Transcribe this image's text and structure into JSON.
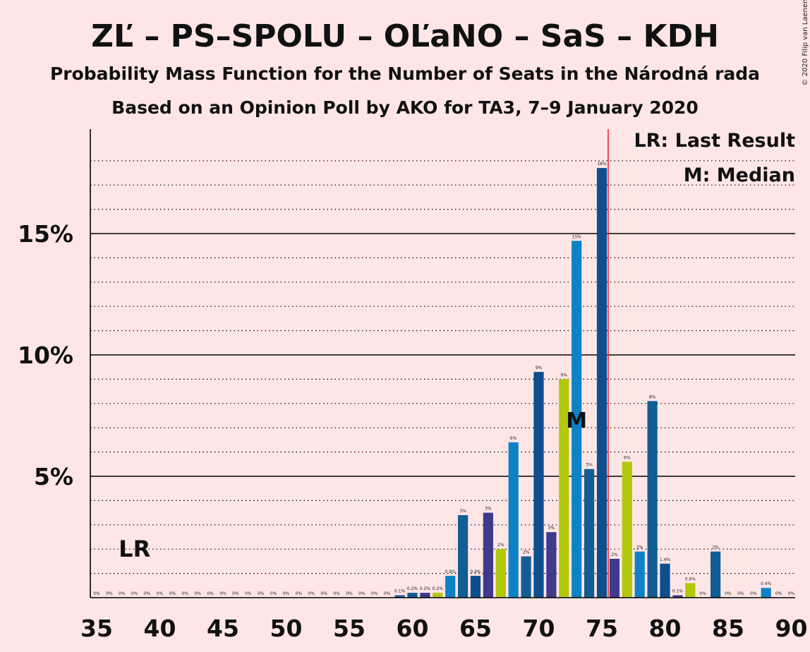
{
  "copyright": "© 2020 Filip van Laenen",
  "chart_data": {
    "type": "bar",
    "title": "ZĽ – PS–SPOLU – OĽaNO – SaS – KDH",
    "subtitle": "Probability Mass Function for the Number of Seats in the Národná rada",
    "subtitle2": "Based on an Opinion Poll by AKO for TA3, 7–9 January 2020",
    "xlabel": "",
    "ylabel": "",
    "xlim": [
      35,
      90
    ],
    "ylim": [
      0,
      19
    ],
    "x_ticks": [
      35,
      40,
      45,
      50,
      55,
      60,
      65,
      70,
      75,
      80,
      85,
      90
    ],
    "y_ticks": [
      {
        "value": 5,
        "label": "5%"
      },
      {
        "value": 10,
        "label": "10%"
      },
      {
        "value": 15,
        "label": "15%"
      }
    ],
    "legend": [
      "LR: Last Result",
      "M: Median"
    ],
    "legend_position": "top-right",
    "last_result": {
      "seats": 38,
      "label": "LR"
    },
    "median": {
      "seats": 73,
      "label": "M"
    },
    "majority_line": 75.5,
    "colors": {
      "dark_blue": "#0E4E8E",
      "steel_blue": "#125D93",
      "sky_blue": "#0E82C6",
      "yellow_green": "#B2C80A",
      "purple": "#3F3A8C",
      "majority_line": "#E8282F",
      "background": "#FFE6E6"
    },
    "bars": [
      {
        "seats": 35,
        "value": 0,
        "label": "0%",
        "color": "#125D93"
      },
      {
        "seats": 36,
        "value": 0,
        "label": "0%",
        "color": "#125D93"
      },
      {
        "seats": 37,
        "value": 0,
        "label": "0%",
        "color": "#125D93"
      },
      {
        "seats": 38,
        "value": 0,
        "label": "0%",
        "color": "#125D93"
      },
      {
        "seats": 39,
        "value": 0,
        "label": "0%",
        "color": "#125D93"
      },
      {
        "seats": 40,
        "value": 0,
        "label": "0%",
        "color": "#125D93"
      },
      {
        "seats": 41,
        "value": 0,
        "label": "0%",
        "color": "#125D93"
      },
      {
        "seats": 42,
        "value": 0,
        "label": "0%",
        "color": "#125D93"
      },
      {
        "seats": 43,
        "value": 0,
        "label": "0%",
        "color": "#125D93"
      },
      {
        "seats": 44,
        "value": 0,
        "label": "0%",
        "color": "#125D93"
      },
      {
        "seats": 45,
        "value": 0,
        "label": "0%",
        "color": "#125D93"
      },
      {
        "seats": 46,
        "value": 0,
        "label": "0%",
        "color": "#125D93"
      },
      {
        "seats": 47,
        "value": 0,
        "label": "0%",
        "color": "#125D93"
      },
      {
        "seats": 48,
        "value": 0,
        "label": "0%",
        "color": "#125D93"
      },
      {
        "seats": 49,
        "value": 0,
        "label": "0%",
        "color": "#125D93"
      },
      {
        "seats": 50,
        "value": 0,
        "label": "0%",
        "color": "#125D93"
      },
      {
        "seats": 51,
        "value": 0,
        "label": "0%",
        "color": "#125D93"
      },
      {
        "seats": 52,
        "value": 0,
        "label": "0%",
        "color": "#125D93"
      },
      {
        "seats": 53,
        "value": 0,
        "label": "0%",
        "color": "#125D93"
      },
      {
        "seats": 54,
        "value": 0,
        "label": "0%",
        "color": "#125D93"
      },
      {
        "seats": 55,
        "value": 0,
        "label": "0%",
        "color": "#125D93"
      },
      {
        "seats": 56,
        "value": 0,
        "label": "0%",
        "color": "#125D93"
      },
      {
        "seats": 57,
        "value": 0,
        "label": "0%",
        "color": "#125D93"
      },
      {
        "seats": 58,
        "value": 0,
        "label": "0%",
        "color": "#125D93"
      },
      {
        "seats": 59,
        "value": 0.1,
        "label": "0.1%",
        "color": "#125D93"
      },
      {
        "seats": 60,
        "value": 0.2,
        "label": "0.2%",
        "color": "#125D93"
      },
      {
        "seats": 61,
        "value": 0.2,
        "label": "0.2%",
        "color": "#3F3A8C"
      },
      {
        "seats": 62,
        "value": 0.2,
        "label": "0.2%",
        "color": "#B2C80A"
      },
      {
        "seats": 63,
        "value": 0.9,
        "label": "0.9%",
        "color": "#0E82C6"
      },
      {
        "seats": 64,
        "value": 3.4,
        "label": "3%",
        "color": "#125D93"
      },
      {
        "seats": 65,
        "value": 0.9,
        "label": "0.9%",
        "color": "#0E4E8E"
      },
      {
        "seats": 66,
        "value": 3.5,
        "label": "3%",
        "color": "#3F3A8C"
      },
      {
        "seats": 67,
        "value": 2.0,
        "label": "2%",
        "color": "#B2C80A"
      },
      {
        "seats": 68,
        "value": 6.4,
        "label": "6%",
        "color": "#0E82C6"
      },
      {
        "seats": 69,
        "value": 1.7,
        "label": "2%",
        "color": "#125D93"
      },
      {
        "seats": 70,
        "value": 9.3,
        "label": "9%",
        "color": "#0E4E8E"
      },
      {
        "seats": 71,
        "value": 2.7,
        "label": "3%",
        "color": "#3F3A8C"
      },
      {
        "seats": 72,
        "value": 9.0,
        "label": "9%",
        "color": "#B2C80A"
      },
      {
        "seats": 73,
        "value": 14.7,
        "label": "15%",
        "color": "#0E82C6"
      },
      {
        "seats": 74,
        "value": 5.3,
        "label": "5%",
        "color": "#125D93"
      },
      {
        "seats": 75,
        "value": 17.7,
        "label": "18%",
        "color": "#0E4E8E"
      },
      {
        "seats": 76,
        "value": 1.6,
        "label": "2%",
        "color": "#3F3A8C"
      },
      {
        "seats": 77,
        "value": 5.6,
        "label": "6%",
        "color": "#B2C80A"
      },
      {
        "seats": 78,
        "value": 1.9,
        "label": "2%",
        "color": "#0E82C6"
      },
      {
        "seats": 79,
        "value": 8.1,
        "label": "8%",
        "color": "#125D93"
      },
      {
        "seats": 80,
        "value": 1.4,
        "label": "1.4%",
        "color": "#0E4E8E"
      },
      {
        "seats": 81,
        "value": 0.1,
        "label": "0.1%",
        "color": "#3F3A8C"
      },
      {
        "seats": 82,
        "value": 0.6,
        "label": "0.6%",
        "color": "#B2C80A"
      },
      {
        "seats": 83,
        "value": 0,
        "label": "0%",
        "color": "#0E82C6"
      },
      {
        "seats": 84,
        "value": 1.9,
        "label": "2%",
        "color": "#125D93"
      },
      {
        "seats": 85,
        "value": 0,
        "label": "0%",
        "color": "#0E4E8E"
      },
      {
        "seats": 86,
        "value": 0,
        "label": "0%",
        "color": "#3F3A8C"
      },
      {
        "seats": 87,
        "value": 0,
        "label": "0%",
        "color": "#B2C80A"
      },
      {
        "seats": 88,
        "value": 0.4,
        "label": "0.4%",
        "color": "#0E82C6"
      },
      {
        "seats": 89,
        "value": 0,
        "label": "0%",
        "color": "#125D93"
      },
      {
        "seats": 90,
        "value": 0,
        "label": "0%",
        "color": "#0E4E8E"
      }
    ]
  }
}
